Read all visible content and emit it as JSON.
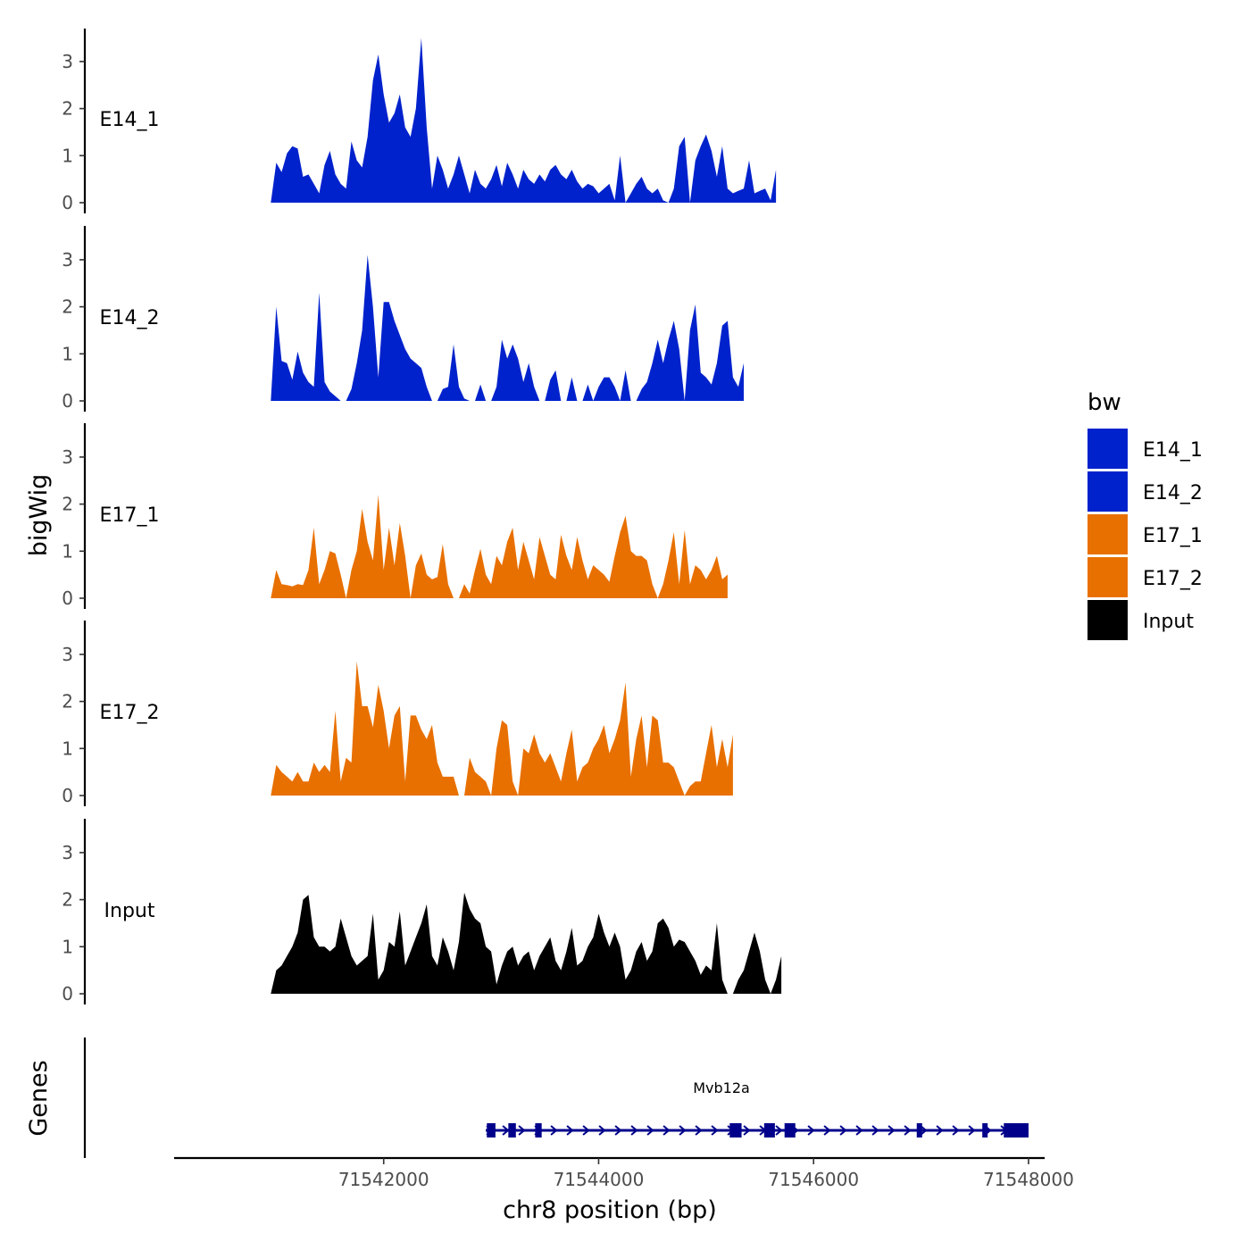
{
  "chart_data": {
    "type": "area",
    "ylabel": "bigWig",
    "xlabel": "chr8 position (bp)",
    "ylim": [
      0,
      3.6
    ],
    "yticks": [
      0,
      1,
      2,
      3
    ],
    "xlim": [
      71540050,
      71548150
    ],
    "xticks": [
      71542000,
      71544000,
      71546000,
      71548000
    ],
    "x_start": 71540950,
    "x_step": 50,
    "series": [
      {
        "name": "E14_1",
        "color": "#0022cc",
        "values": [
          0.0,
          0.85,
          0.65,
          1.05,
          1.2,
          1.15,
          0.55,
          0.6,
          0.4,
          0.2,
          0.8,
          1.1,
          0.6,
          0.4,
          0.3,
          1.3,
          0.9,
          0.75,
          1.4,
          2.6,
          3.15,
          2.3,
          1.7,
          1.9,
          2.3,
          1.6,
          1.4,
          2.0,
          3.5,
          1.6,
          0.3,
          1.0,
          0.7,
          0.3,
          0.6,
          1.0,
          0.6,
          0.2,
          0.7,
          0.4,
          0.3,
          0.5,
          0.8,
          0.35,
          0.85,
          0.6,
          0.3,
          0.7,
          0.5,
          0.4,
          0.6,
          0.45,
          0.7,
          0.8,
          0.6,
          0.5,
          0.7,
          0.45,
          0.3,
          0.4,
          0.35,
          0.2,
          0.3,
          0.4,
          0.05,
          1.0,
          0.0,
          0.2,
          0.4,
          0.55,
          0.3,
          0.2,
          0.3,
          0.05,
          0.0,
          0.3,
          1.2,
          1.4,
          0.0,
          0.9,
          1.2,
          1.45,
          1.1,
          0.55,
          1.2,
          0.3,
          0.2,
          0.25,
          0.3,
          0.9,
          0.2,
          0.25,
          0.3,
          0.05,
          0.7
        ]
      },
      {
        "name": "E14_2",
        "color": "#0022cc",
        "values": [
          0.0,
          2.0,
          0.85,
          0.8,
          0.45,
          1.05,
          0.6,
          0.4,
          0.3,
          2.3,
          0.4,
          0.2,
          0.1,
          0.0,
          0.0,
          0.25,
          0.8,
          1.5,
          3.1,
          2.0,
          0.5,
          2.1,
          2.1,
          1.7,
          1.4,
          1.1,
          0.9,
          0.8,
          0.7,
          0.3,
          0.0,
          0.0,
          0.25,
          0.3,
          1.2,
          0.3,
          0.05,
          0.0,
          0.0,
          0.35,
          0.0,
          0.0,
          0.3,
          1.3,
          0.9,
          1.2,
          0.9,
          0.4,
          0.8,
          0.3,
          0.0,
          0.0,
          0.45,
          0.65,
          0.0,
          0.0,
          0.5,
          0.0,
          0.0,
          0.35,
          0.0,
          0.3,
          0.5,
          0.5,
          0.3,
          0.0,
          0.65,
          0.0,
          0.0,
          0.25,
          0.4,
          0.8,
          1.3,
          0.8,
          1.3,
          1.7,
          1.1,
          0.0,
          1.5,
          2.05,
          0.6,
          0.5,
          0.35,
          0.8,
          1.6,
          1.7,
          0.5,
          0.3,
          0.8
        ]
      },
      {
        "name": "E17_1",
        "color": "#e87000",
        "values": [
          0.0,
          0.6,
          0.3,
          0.28,
          0.25,
          0.3,
          0.28,
          0.6,
          1.5,
          0.3,
          0.6,
          1.0,
          0.95,
          0.5,
          0.0,
          0.6,
          1.0,
          1.9,
          1.2,
          0.8,
          2.2,
          0.6,
          1.5,
          0.7,
          1.6,
          0.9,
          0.0,
          0.7,
          0.95,
          0.5,
          0.4,
          0.45,
          1.15,
          0.3,
          0.0,
          0.0,
          0.3,
          0.1,
          0.6,
          1.05,
          0.5,
          0.3,
          0.9,
          0.7,
          1.2,
          1.5,
          0.6,
          1.2,
          0.8,
          0.4,
          1.3,
          0.9,
          0.5,
          0.4,
          1.35,
          0.9,
          0.6,
          1.3,
          0.8,
          0.4,
          0.7,
          0.6,
          0.5,
          0.35,
          0.9,
          1.4,
          1.75,
          1.0,
          0.9,
          0.9,
          0.8,
          0.3,
          0.0,
          0.3,
          0.8,
          1.4,
          0.3,
          1.45,
          0.3,
          0.7,
          0.6,
          0.4,
          0.6,
          0.9,
          0.4,
          0.5
        ]
      },
      {
        "name": "E17_2",
        "color": "#e87000",
        "values": [
          0.0,
          0.65,
          0.5,
          0.4,
          0.3,
          0.5,
          0.3,
          0.3,
          0.7,
          0.5,
          0.65,
          0.5,
          1.8,
          0.3,
          0.8,
          0.7,
          2.85,
          1.9,
          1.9,
          1.45,
          2.35,
          1.8,
          1.0,
          1.7,
          1.9,
          0.3,
          1.7,
          1.7,
          1.4,
          1.2,
          1.5,
          0.7,
          0.4,
          0.4,
          0.4,
          0.0,
          0.0,
          0.8,
          0.5,
          0.4,
          0.3,
          0.0,
          1.0,
          1.6,
          1.5,
          0.3,
          0.0,
          1.0,
          0.9,
          1.3,
          0.9,
          0.7,
          0.9,
          0.6,
          0.3,
          0.9,
          1.4,
          0.3,
          0.6,
          0.7,
          1.0,
          1.2,
          1.5,
          0.9,
          1.2,
          1.6,
          2.4,
          0.4,
          1.2,
          1.7,
          0.6,
          1.7,
          1.6,
          0.7,
          0.7,
          0.6,
          0.3,
          0.0,
          0.2,
          0.3,
          0.3,
          0.9,
          1.5,
          0.6,
          1.2,
          0.6,
          1.3
        ]
      },
      {
        "name": "Input",
        "color": "#000000",
        "values": [
          0.0,
          0.5,
          0.6,
          0.8,
          1.0,
          1.3,
          2.0,
          2.1,
          1.2,
          1.0,
          1.0,
          0.9,
          1.0,
          1.6,
          1.2,
          0.8,
          0.6,
          0.7,
          0.8,
          1.7,
          0.3,
          0.5,
          1.1,
          1.0,
          1.75,
          0.6,
          0.9,
          1.2,
          1.5,
          1.9,
          0.8,
          0.6,
          1.2,
          0.9,
          0.5,
          1.1,
          2.15,
          1.8,
          1.6,
          1.5,
          1.0,
          0.9,
          0.2,
          0.6,
          0.9,
          1.0,
          0.6,
          0.8,
          0.9,
          0.5,
          0.8,
          1.0,
          1.2,
          0.7,
          0.5,
          0.9,
          1.4,
          0.6,
          0.7,
          1.0,
          1.2,
          1.7,
          1.3,
          1.0,
          1.3,
          1.0,
          0.3,
          0.5,
          0.9,
          1.1,
          0.7,
          0.9,
          1.5,
          1.6,
          1.4,
          1.0,
          1.15,
          1.1,
          0.9,
          0.7,
          0.4,
          0.6,
          0.5,
          1.5,
          0.3,
          0.0,
          0.0,
          0.3,
          0.5,
          0.9,
          1.3,
          0.9,
          0.3,
          0.0,
          0.3,
          0.8
        ]
      }
    ],
    "legend": {
      "title": "bw",
      "position": "right",
      "entries": [
        {
          "label": "E14_1",
          "color": "#0022cc"
        },
        {
          "label": "E14_2",
          "color": "#0022cc"
        },
        {
          "label": "E17_1",
          "color": "#e87000"
        },
        {
          "label": "E17_2",
          "color": "#e87000"
        },
        {
          "label": "Input",
          "color": "#000000"
        }
      ]
    },
    "gene_track": {
      "title": "Genes",
      "gene_name": "Mvb12a",
      "color": "#00008b",
      "strand": "+",
      "start": 71542950,
      "end": 71548000,
      "exons": [
        [
          71542960,
          71543040
        ],
        [
          71543160,
          71543230
        ],
        [
          71543410,
          71543470
        ],
        [
          71545220,
          71545330
        ],
        [
          71545540,
          71545640
        ],
        [
          71545730,
          71545830
        ],
        [
          71546960,
          71547010
        ],
        [
          71547570,
          71547610
        ],
        [
          71547770,
          71548000
        ]
      ]
    }
  }
}
